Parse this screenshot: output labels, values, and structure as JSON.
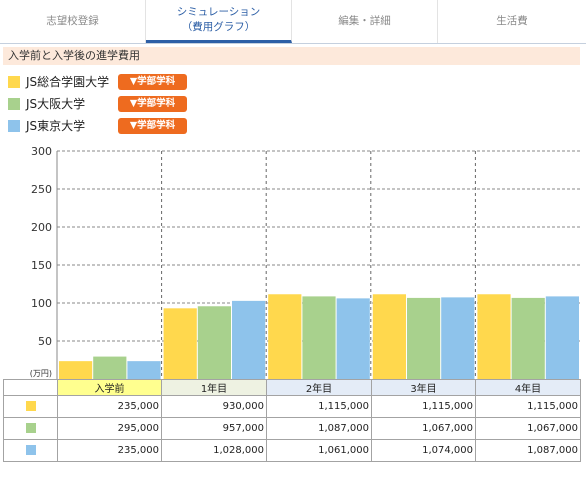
{
  "tabs": [
    {
      "lines": [
        "志望校登録"
      ]
    },
    {
      "lines": [
        "シミュレーション",
        "（費用グラフ）"
      ]
    },
    {
      "lines": [
        "編集・詳細"
      ]
    },
    {
      "lines": [
        "生活費"
      ]
    }
  ],
  "active_tab_index": 1,
  "section_title": "入学前と入学後の進学費用",
  "legend": {
    "button_labels": [
      "▼学部学科",
      "▼学部学科",
      "▼学部学科"
    ]
  },
  "colors": {
    "active_tab": "#2d5fa6",
    "accent_button": "#ee6b1f",
    "section_band": "#fde9db"
  },
  "chart_data": {
    "type": "bar",
    "categories": [
      "入学前",
      "1年目",
      "2年目",
      "3年目",
      "4年目"
    ],
    "series": [
      {
        "name": "JS総合学園大学",
        "color": "#ffd84d",
        "values": [
          23.5,
          93.0,
          111.5,
          111.5,
          111.5
        ]
      },
      {
        "name": "JS大阪大学",
        "color": "#a8d18d",
        "values": [
          29.5,
          95.7,
          108.7,
          106.7,
          106.7
        ]
      },
      {
        "name": "JS東京大学",
        "color": "#8ec3eb",
        "values": [
          23.5,
          102.8,
          106.1,
          107.4,
          108.7
        ]
      }
    ],
    "yticks": [
      50,
      100,
      150,
      200,
      250,
      300
    ],
    "ylim": [
      0,
      300
    ],
    "yunit": "(万円)",
    "grid": true,
    "legend_position": "top-left"
  },
  "table": {
    "header_colors": [
      "#ffff8f",
      "#eef2e2",
      "#e4ecf7",
      "#e4ecf7",
      "#e4ecf7"
    ],
    "rows": [
      [
        "235,000",
        "930,000",
        "1,115,000",
        "1,115,000",
        "1,115,000"
      ],
      [
        "295,000",
        "957,000",
        "1,087,000",
        "1,067,000",
        "1,067,000"
      ],
      [
        "235,000",
        "1,028,000",
        "1,061,000",
        "1,074,000",
        "1,087,000"
      ]
    ]
  }
}
